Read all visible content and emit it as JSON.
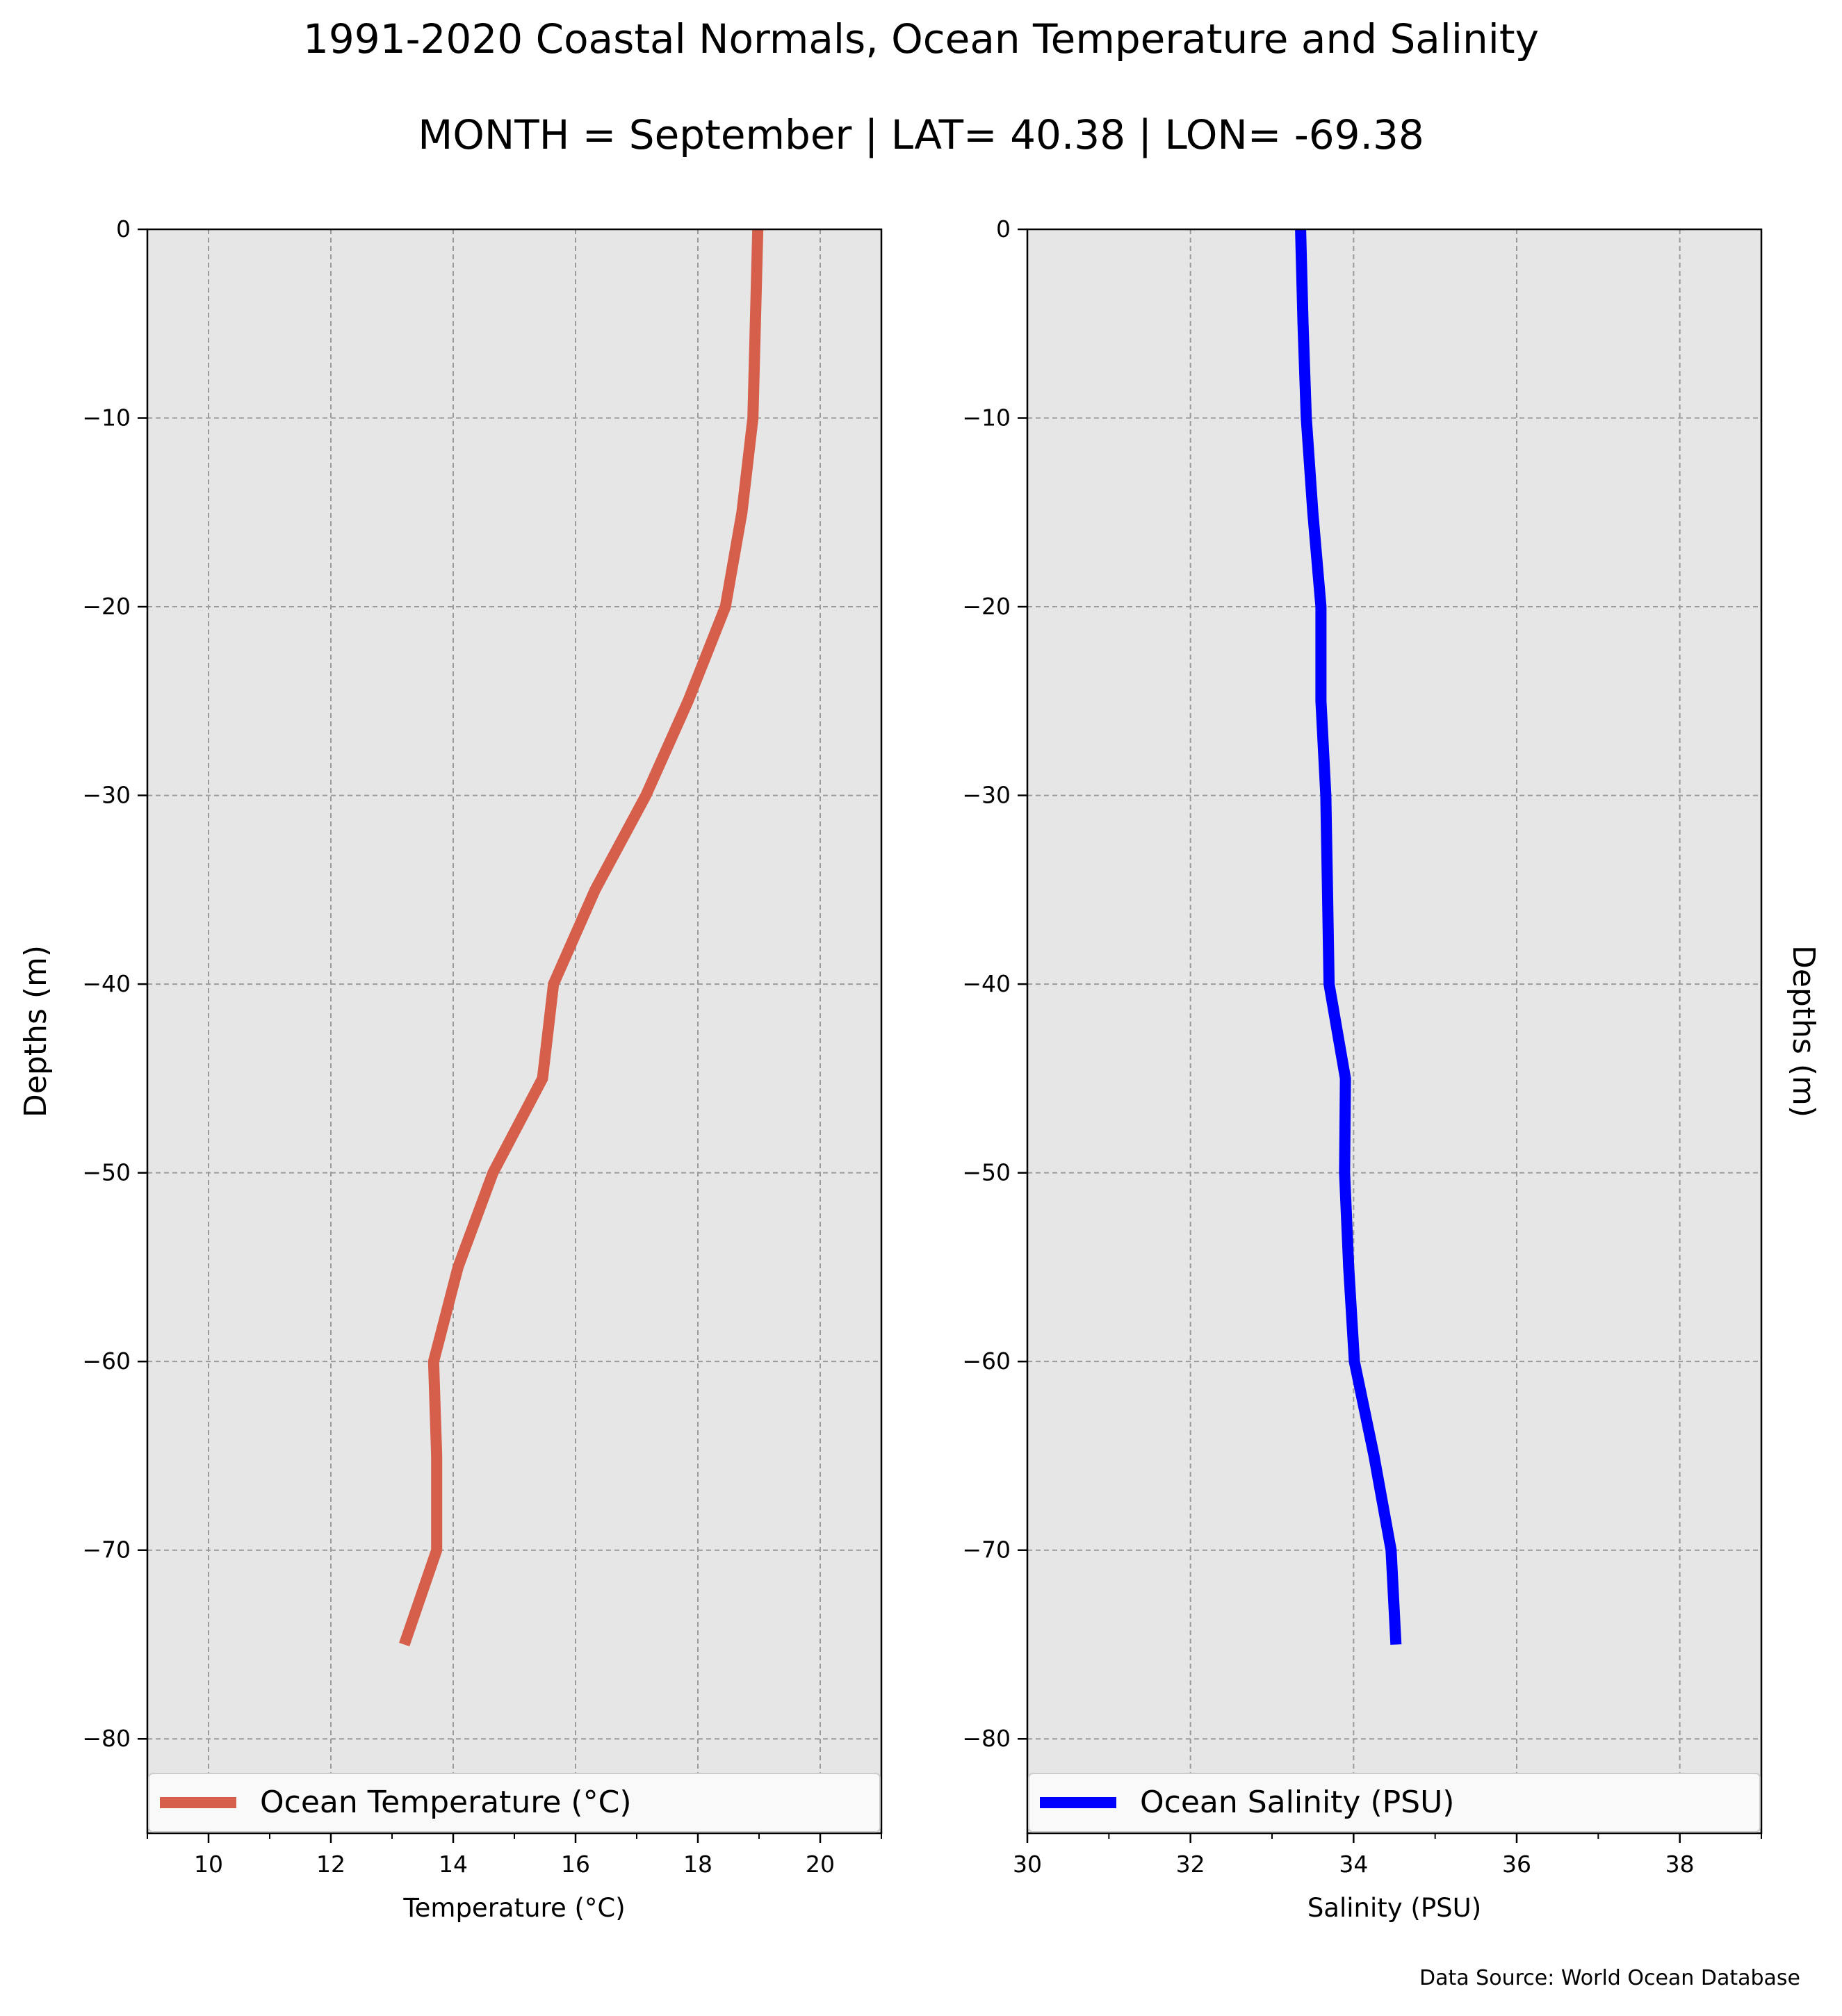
{
  "figure": {
    "title": "1991-2020 Coastal Normals, Ocean Temperature and Salinity",
    "subtitle": "MONTH = September | LAT= 40.38 | LON= -69.38",
    "source_note": "Data Source: World Ocean Database"
  },
  "chart_data": [
    {
      "type": "line",
      "title": "",
      "xlabel": "Temperature (°C)",
      "ylabel": "Depths (m)",
      "xlim": [
        9,
        21
      ],
      "ylim": [
        -85,
        0
      ],
      "xticks": [
        10,
        12,
        14,
        16,
        18,
        20
      ],
      "yticks": [
        0,
        -10,
        -20,
        -30,
        -40,
        -50,
        -60,
        -70,
        -80
      ],
      "grid": true,
      "legend_position": "bottom",
      "series": [
        {
          "name": "Ocean Temperature (°C)",
          "color": "#d65f4b",
          "x": [
            18.98,
            18.94,
            18.9,
            18.72,
            18.45,
            17.84,
            17.15,
            16.32,
            15.64,
            15.46,
            14.65,
            14.08,
            13.68,
            13.73,
            13.73,
            13.2
          ],
          "y": [
            0,
            -5,
            -10,
            -15,
            -20,
            -25,
            -30,
            -35,
            -40,
            -45,
            -50,
            -55,
            -60,
            -65,
            -70,
            -75
          ]
        }
      ]
    },
    {
      "type": "line",
      "title": "",
      "xlabel": "Salinity (PSU)",
      "ylabel": "Depths (m)",
      "ylabel_position": "right",
      "xlim": [
        30,
        39
      ],
      "ylim": [
        -85,
        0
      ],
      "xticks": [
        30,
        32,
        34,
        36,
        38
      ],
      "yticks": [
        0,
        -10,
        -20,
        -30,
        -40,
        -50,
        -60,
        -70,
        -80
      ],
      "grid": true,
      "legend_position": "bottom",
      "series": [
        {
          "name": "Ocean Salinity (PSU)",
          "color": "#0000ff",
          "x": [
            33.35,
            33.38,
            33.42,
            33.5,
            33.6,
            33.6,
            33.66,
            33.68,
            33.7,
            33.9,
            33.89,
            33.94,
            34.01,
            34.25,
            34.46,
            34.52
          ],
          "y": [
            0,
            -5,
            -10,
            -15,
            -20,
            -25,
            -30,
            -35,
            -40,
            -45,
            -50,
            -55,
            -60,
            -65,
            -70,
            -75
          ]
        }
      ]
    }
  ]
}
